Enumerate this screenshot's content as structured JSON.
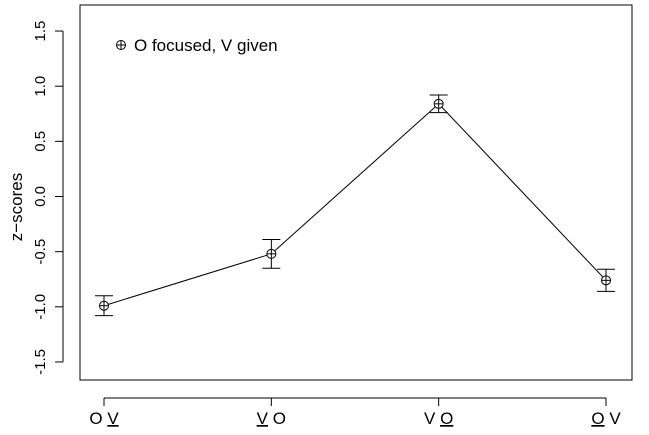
{
  "chart_data": {
    "type": "line",
    "xlabel": "",
    "ylabel": "z−scores",
    "categories": [
      {
        "first": "O",
        "second": "V",
        "underline": "second"
      },
      {
        "first": "V",
        "second": "O",
        "underline": "first"
      },
      {
        "first": "V",
        "second": "O",
        "underline": "second"
      },
      {
        "first": "O",
        "second": "V",
        "underline": "first"
      }
    ],
    "series": [
      {
        "name": "O focused, V given",
        "values": [
          -0.99,
          -0.52,
          0.84,
          -0.76
        ],
        "err_low": [
          -1.08,
          -0.65,
          0.76,
          -0.86
        ],
        "err_high": [
          -0.9,
          -0.39,
          0.92,
          -0.66
        ]
      }
    ],
    "ylim": [
      -1.6,
      1.6
    ],
    "yticks": [
      {
        "value": -1.5,
        "label": "-1.5"
      },
      {
        "value": -1.0,
        "label": "-1.0"
      },
      {
        "value": -0.5,
        "label": "-0.5"
      },
      {
        "value": 0.0,
        "label": "0.0"
      },
      {
        "value": 0.5,
        "label": "0.5"
      },
      {
        "value": 1.0,
        "label": "1.0"
      },
      {
        "value": 1.5,
        "label": "1.5"
      }
    ],
    "legend_position": "top-left",
    "grid": false,
    "colors": {
      "line": "#000000",
      "axis": "#000000",
      "background": "#ffffff"
    }
  }
}
